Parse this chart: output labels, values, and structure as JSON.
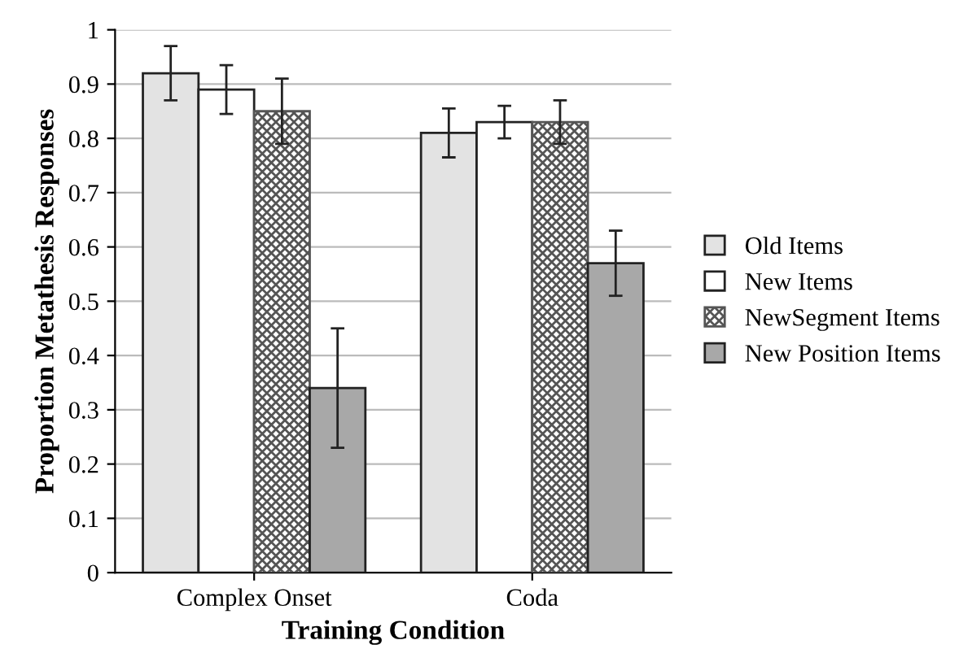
{
  "chart_data": {
    "type": "bar",
    "xlabel": "Training Condition",
    "ylabel": "Proportion Metathesis Responses",
    "categories": [
      "Complex Onset",
      "Coda"
    ],
    "series": [
      {
        "name": "Old Items",
        "color": "#e3e3e3",
        "values": [
          0.92,
          0.81
        ],
        "errors": [
          0.05,
          0.045
        ]
      },
      {
        "name": "New Items",
        "color": "#ffffff",
        "values": [
          0.89,
          0.83
        ],
        "errors": [
          0.045,
          0.03
        ]
      },
      {
        "name": "NewSegment Items",
        "color": "#555555",
        "values": [
          0.85,
          0.83
        ],
        "errors": [
          0.06,
          0.04
        ]
      },
      {
        "name": "New Position Items",
        "color": "#a8a8a8",
        "values": [
          0.34,
          0.57
        ],
        "errors": [
          0.11,
          0.06
        ]
      }
    ],
    "ylim": [
      0,
      1
    ],
    "yticks": [
      0,
      0.1,
      0.2,
      0.3,
      0.4,
      0.5,
      0.6,
      0.7,
      0.8,
      0.9,
      1
    ],
    "grid": "y",
    "legend": "right"
  }
}
